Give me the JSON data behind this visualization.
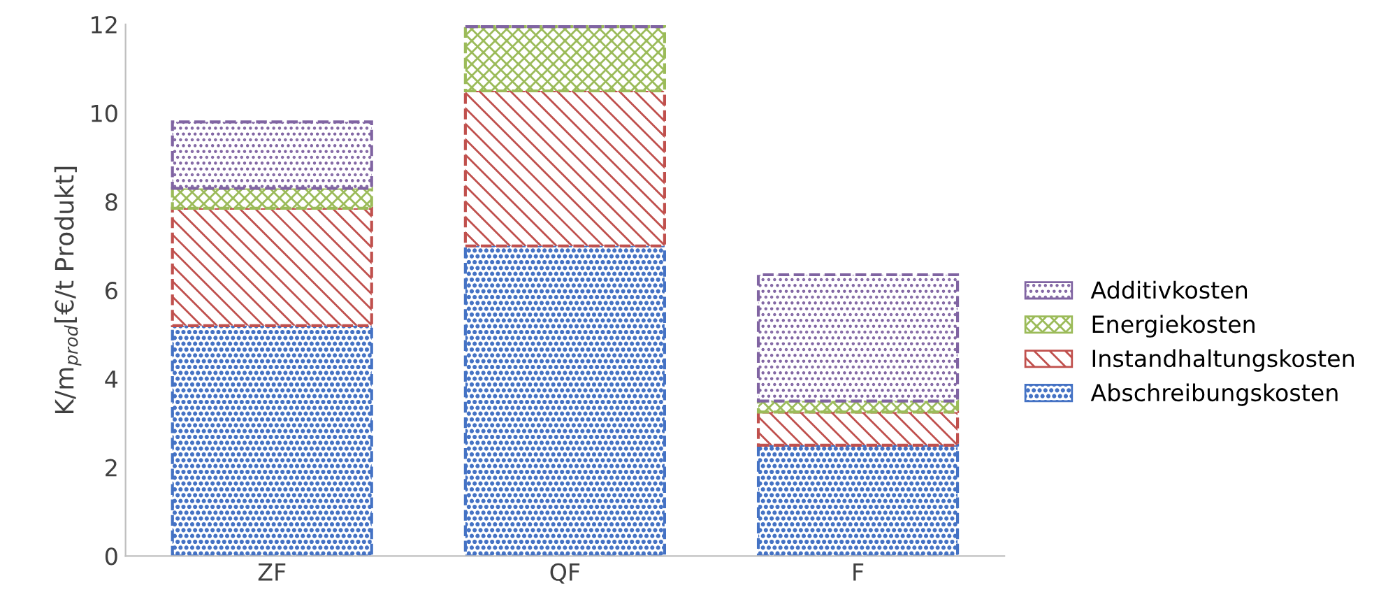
{
  "chart_data": {
    "type": "bar",
    "stacked": true,
    "ylabel": "K/m$_{prod}$[€/t Produkt]",
    "categories": [
      "ZF",
      "QF",
      "F"
    ],
    "series": [
      {
        "name": "Abschreibungskosten",
        "color": "#4472c4",
        "values": [
          5.2,
          7.0,
          2.5
        ]
      },
      {
        "name": "Instandhaltungskosten",
        "color": "#c0504d",
        "values": [
          2.65,
          3.5,
          0.75
        ]
      },
      {
        "name": "Energiekosten",
        "color": "#9bbb59",
        "values": [
          0.45,
          1.45,
          0.25
        ]
      },
      {
        "name": "Additivkosten",
        "color": "#8064a2",
        "values": [
          1.5,
          0,
          2.85
        ]
      }
    ],
    "ylim": [
      0,
      12
    ],
    "yticks": [
      0,
      2,
      4,
      6,
      8,
      10,
      12
    ],
    "grid": false,
    "legend": "right"
  }
}
